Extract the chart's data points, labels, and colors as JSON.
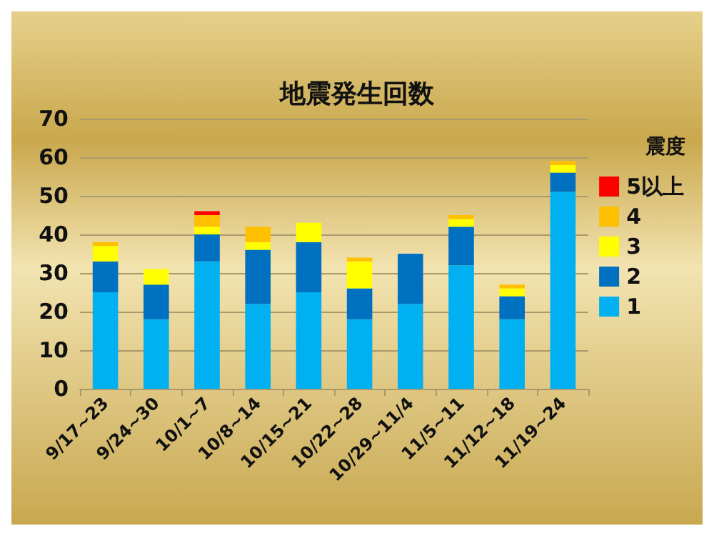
{
  "chart_data": {
    "type": "bar",
    "title": "地震発生回数",
    "stacked": true,
    "legend": "right",
    "legend_title": "震度",
    "grid": "y",
    "categories": [
      "9/17~23",
      "9/24~30",
      "10/1~7",
      "10/8~14",
      "10/15~21",
      "10/22~28",
      "10/29~11/4",
      "11/5~11",
      "11/12~18",
      "11/19~24"
    ],
    "series": [
      {
        "name": "1",
        "color": "#00b0f0",
        "values": [
          25,
          18,
          33,
          22,
          25,
          18,
          22,
          32,
          18,
          51
        ]
      },
      {
        "name": "2",
        "color": "#0070c0",
        "values": [
          8,
          9,
          7,
          14,
          13,
          8,
          13,
          10,
          6,
          5
        ]
      },
      {
        "name": "3",
        "color": "#ffff00",
        "values": [
          4,
          4,
          2,
          2,
          5,
          7,
          0,
          2,
          2,
          2
        ]
      },
      {
        "name": "4",
        "color": "#ffc000",
        "values": [
          1,
          0,
          3,
          4,
          0,
          1,
          0,
          1,
          1,
          1
        ]
      },
      {
        "name": "5以上",
        "color": "#ff0000",
        "values": [
          0,
          0,
          1,
          0,
          0,
          0,
          0,
          0,
          0,
          0
        ]
      }
    ],
    "ylim": [
      0,
      70
    ],
    "yticks": [
      0,
      10,
      20,
      30,
      40,
      50,
      60,
      70
    ]
  }
}
